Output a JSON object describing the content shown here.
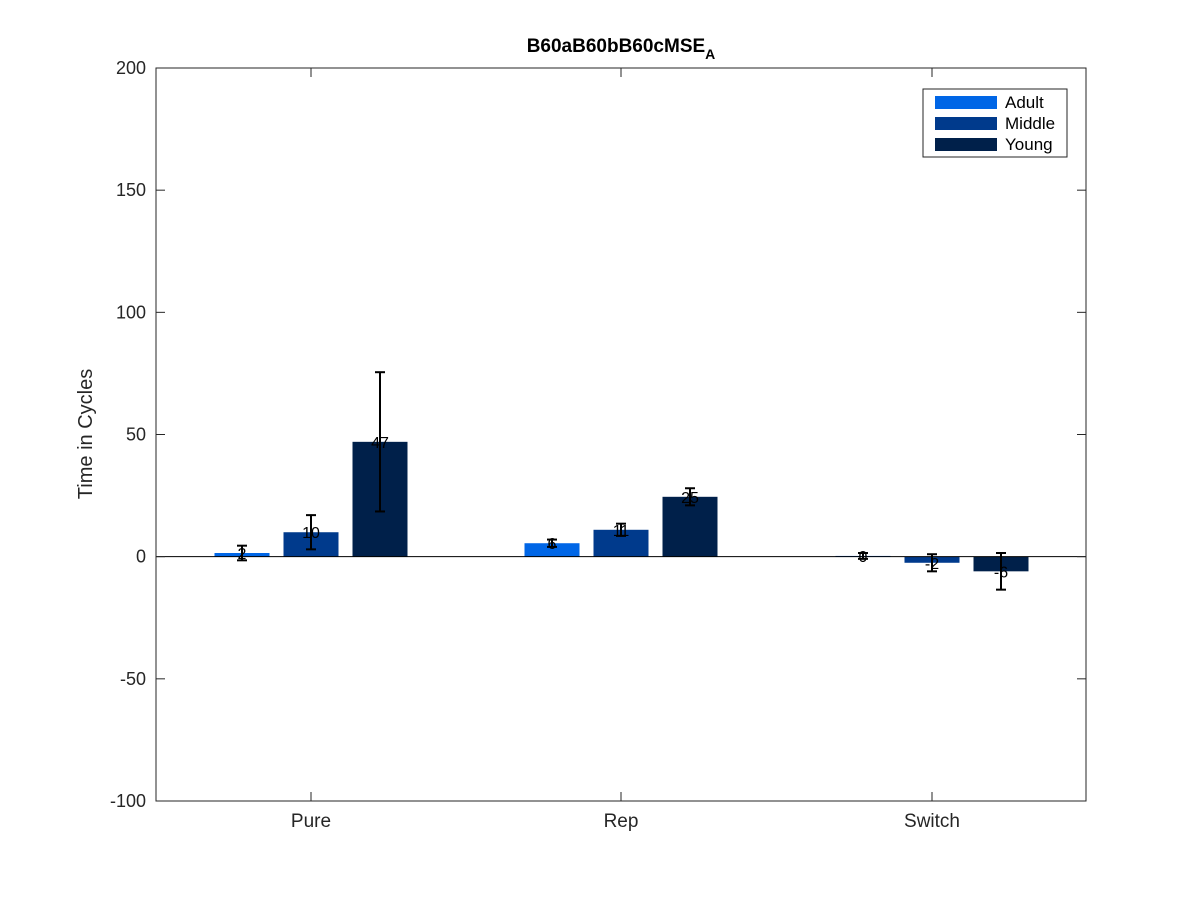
{
  "chart_data": {
    "type": "bar",
    "title": "B60aB60bB60cMSE",
    "title_subscript": "A",
    "xlabel": "",
    "ylabel": "Time in Cycles",
    "ylim": [
      -100,
      200
    ],
    "yticks": [
      -100,
      -50,
      0,
      50,
      100,
      150,
      200
    ],
    "categories": [
      "Pure",
      "Rep",
      "Switch"
    ],
    "legend_position": "top-right",
    "grid": false,
    "series": [
      {
        "name": "Adult",
        "color": "#0066e6",
        "values": [
          1.5,
          5.5,
          0.3
        ],
        "errors": [
          3,
          1.5,
          1.2
        ],
        "labels": [
          "2",
          "6",
          "0"
        ]
      },
      {
        "name": "Middle",
        "color": "#003a8c",
        "values": [
          10,
          11,
          -2.5
        ],
        "errors": [
          7,
          2.5,
          3.5
        ],
        "labels": [
          "10",
          "11",
          "-2"
        ]
      },
      {
        "name": "Young",
        "color": "#00204a",
        "values": [
          47,
          24.5,
          -6
        ],
        "errors": [
          28.5,
          3.5,
          7.5
        ],
        "labels": [
          "47",
          "25",
          "-6"
        ]
      }
    ]
  }
}
